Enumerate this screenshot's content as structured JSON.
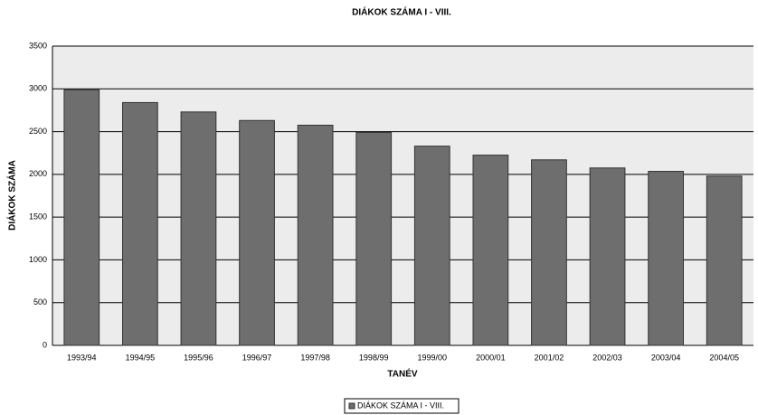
{
  "chart_data": {
    "type": "bar",
    "title": "DIÁKOK SZÁMA I - VIII.",
    "x_label": "TANÉV",
    "y_label": "DIÁKOK SZÁMA",
    "categories": [
      "1993/94",
      "1994/95",
      "1995/96",
      "1996/97",
      "1997/98",
      "1998/99",
      "1999/00",
      "2000/01",
      "2001/02",
      "2002/03",
      "2003/04",
      "2004/05"
    ],
    "series": [
      {
        "name": "DIÁKOK SZÁMA I - VIII.",
        "color": "#6e6e6e",
        "values": [
          2990,
          2840,
          2730,
          2630,
          2575,
          2490,
          2330,
          2225,
          2170,
          2075,
          2035,
          1980
        ]
      }
    ],
    "ylim": [
      0,
      3500
    ],
    "yticks": [
      0,
      500,
      1000,
      1500,
      2000,
      2500,
      3000,
      3500
    ],
    "grid": true,
    "legend": "bottom"
  }
}
